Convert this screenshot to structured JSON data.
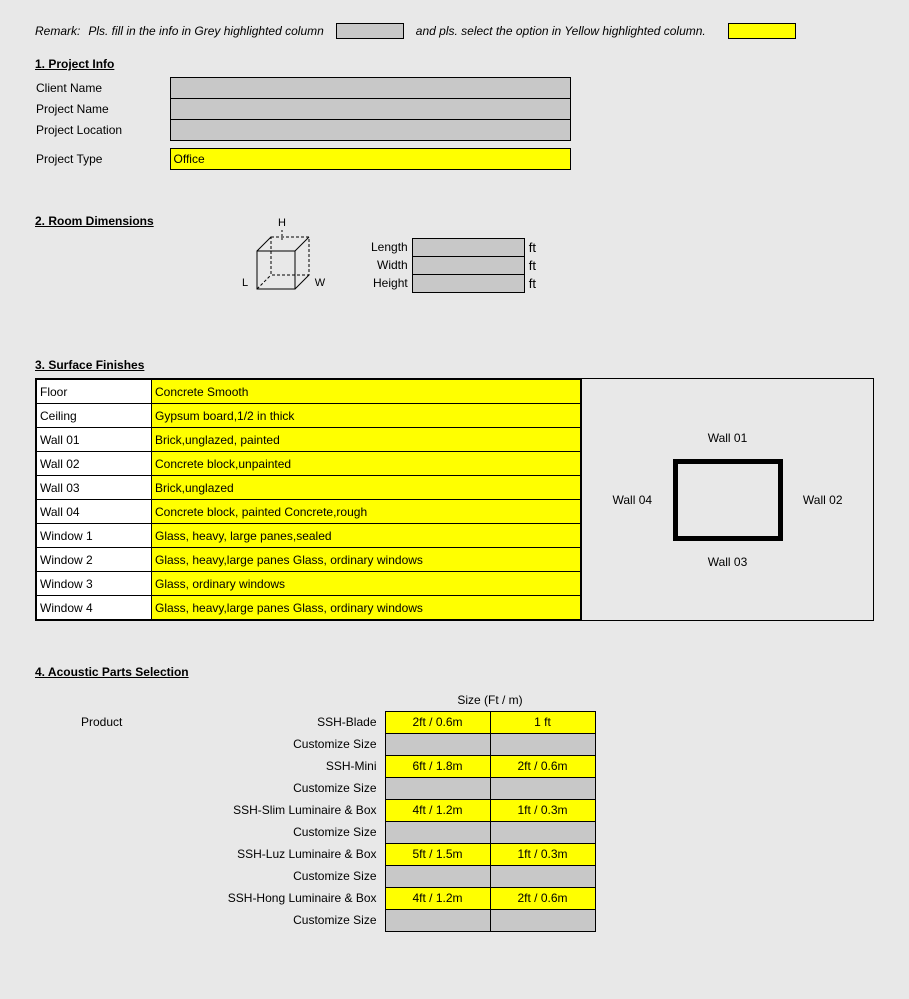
{
  "colors": {
    "page_bg": "#e8e8e8",
    "grey_fill": "#c8c8c8",
    "yellow_fill": "#ffff00",
    "border": "#000000",
    "text": "#000000"
  },
  "remark": {
    "prefix": "Remark:",
    "text1": "Pls. fill in the info in Grey highlighted column",
    "text2": "and pls. select the option in Yellow highlighted column."
  },
  "section1": {
    "title": "1. Project Info",
    "rows": {
      "client_name_label": "Client Name",
      "project_name_label": "Project Name",
      "project_location_label": "Project Location",
      "project_type_label": "Project Type",
      "project_type_value": "Office"
    }
  },
  "section2": {
    "title": "2. Room Dimensions",
    "cube": {
      "H": "H",
      "L": "L",
      "W": "W"
    },
    "fields": {
      "length_label": "Length",
      "length_unit": "ft",
      "width_label": "Width",
      "width_unit": "ft",
      "height_label": "Height",
      "height_unit": "ft"
    }
  },
  "section3": {
    "title": "3. Surface Finishes",
    "rows": [
      {
        "label": "Floor",
        "value": "Concrete Smooth"
      },
      {
        "label": "Ceiling",
        "value": "Gypsum board,1/2 in thick"
      },
      {
        "label": "Wall 01",
        "value": "Brick,unglazed, painted"
      },
      {
        "label": "Wall 02",
        "value": "Concrete block,unpainted"
      },
      {
        "label": "Wall 03",
        "value": "Brick,unglazed"
      },
      {
        "label": "Wall 04",
        "value": "Concrete block, painted Concrete,rough"
      },
      {
        "label": "Window 1",
        "value": "Glass, heavy, large panes,sealed"
      },
      {
        "label": "Window 2",
        "value": "Glass, heavy,large panes Glass, ordinary windows"
      },
      {
        "label": "Window 3",
        "value": "Glass, ordinary windows"
      },
      {
        "label": "Window 4",
        "value": "Glass, heavy,large panes Glass, ordinary windows"
      }
    ],
    "diagram": {
      "wall01": "Wall 01",
      "wall02": "Wall 02",
      "wall03": "Wall 03",
      "wall04": "Wall 04"
    }
  },
  "section4": {
    "title": "4. Acoustic Parts Selection",
    "product_label": "Product",
    "size_header": "Size (Ft / m)",
    "rows": [
      {
        "name": "SSH-Blade",
        "c1": "2ft / 0.6m",
        "c2": "1 ft",
        "style": "yellow"
      },
      {
        "name": "Customize Size",
        "c1": "",
        "c2": "",
        "style": "grey"
      },
      {
        "name": "SSH-Mini",
        "c1": "6ft / 1.8m",
        "c2": "2ft / 0.6m",
        "style": "yellow"
      },
      {
        "name": "Customize Size",
        "c1": "",
        "c2": "",
        "style": "grey"
      },
      {
        "name": "SSH-Slim Luminaire & Box",
        "c1": "4ft / 1.2m",
        "c2": "1ft / 0.3m",
        "style": "yellow"
      },
      {
        "name": "Customize Size",
        "c1": "",
        "c2": "",
        "style": "grey"
      },
      {
        "name": "SSH-Luz Luminaire & Box",
        "c1": "5ft / 1.5m",
        "c2": "1ft / 0.3m",
        "style": "yellow"
      },
      {
        "name": "Customize Size",
        "c1": "",
        "c2": "",
        "style": "grey"
      },
      {
        "name": "SSH-Hong Luminaire & Box",
        "c1": "4ft / 1.2m",
        "c2": "2ft / 0.6m",
        "style": "yellow"
      },
      {
        "name": "Customize Size",
        "c1": "",
        "c2": "",
        "style": "grey"
      }
    ]
  }
}
